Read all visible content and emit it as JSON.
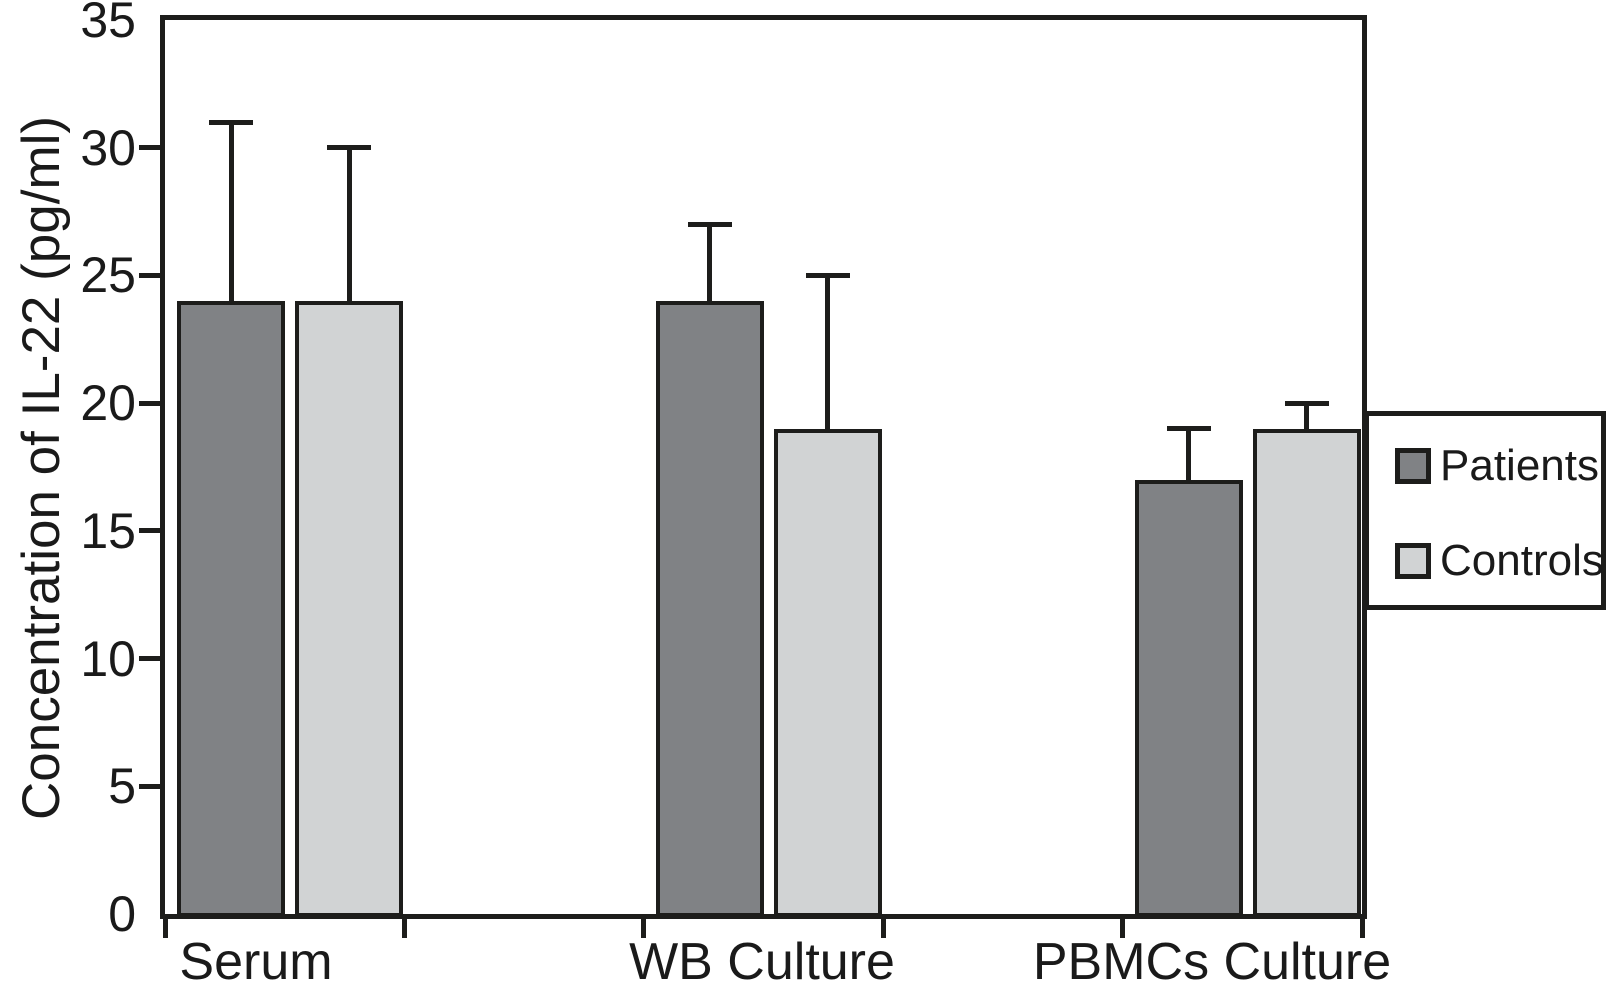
{
  "figure": {
    "background": "#ffffff",
    "text_color": "#1a1a1a",
    "axis_color": "#1d1d1b"
  },
  "chart_data": {
    "type": "bar",
    "title": "",
    "xlabel": "",
    "ylabel": "Concentration of IL-22 (pg/ml)",
    "categories": [
      "Serum",
      "WB Culture",
      "PBMCs Culture"
    ],
    "series": [
      {
        "name": "Patients",
        "color": "#808285",
        "values": [
          24,
          24,
          17
        ],
        "error_upper": [
          7,
          3,
          2
        ],
        "error_tops": [
          31,
          27,
          19
        ]
      },
      {
        "name": "Controls",
        "color": "#d1d3d4",
        "values": [
          24,
          19,
          19
        ],
        "error_upper": [
          6,
          6,
          1
        ],
        "error_tops": [
          30,
          25,
          20
        ]
      }
    ],
    "ylim": [
      0,
      35
    ],
    "yticks": [
      0,
      5,
      10,
      15,
      20,
      25,
      30,
      35
    ],
    "grid": false,
    "error_bars": "upper-only",
    "legend": {
      "position": "right",
      "border": true,
      "entries": [
        "Patients",
        "Controls"
      ]
    }
  }
}
